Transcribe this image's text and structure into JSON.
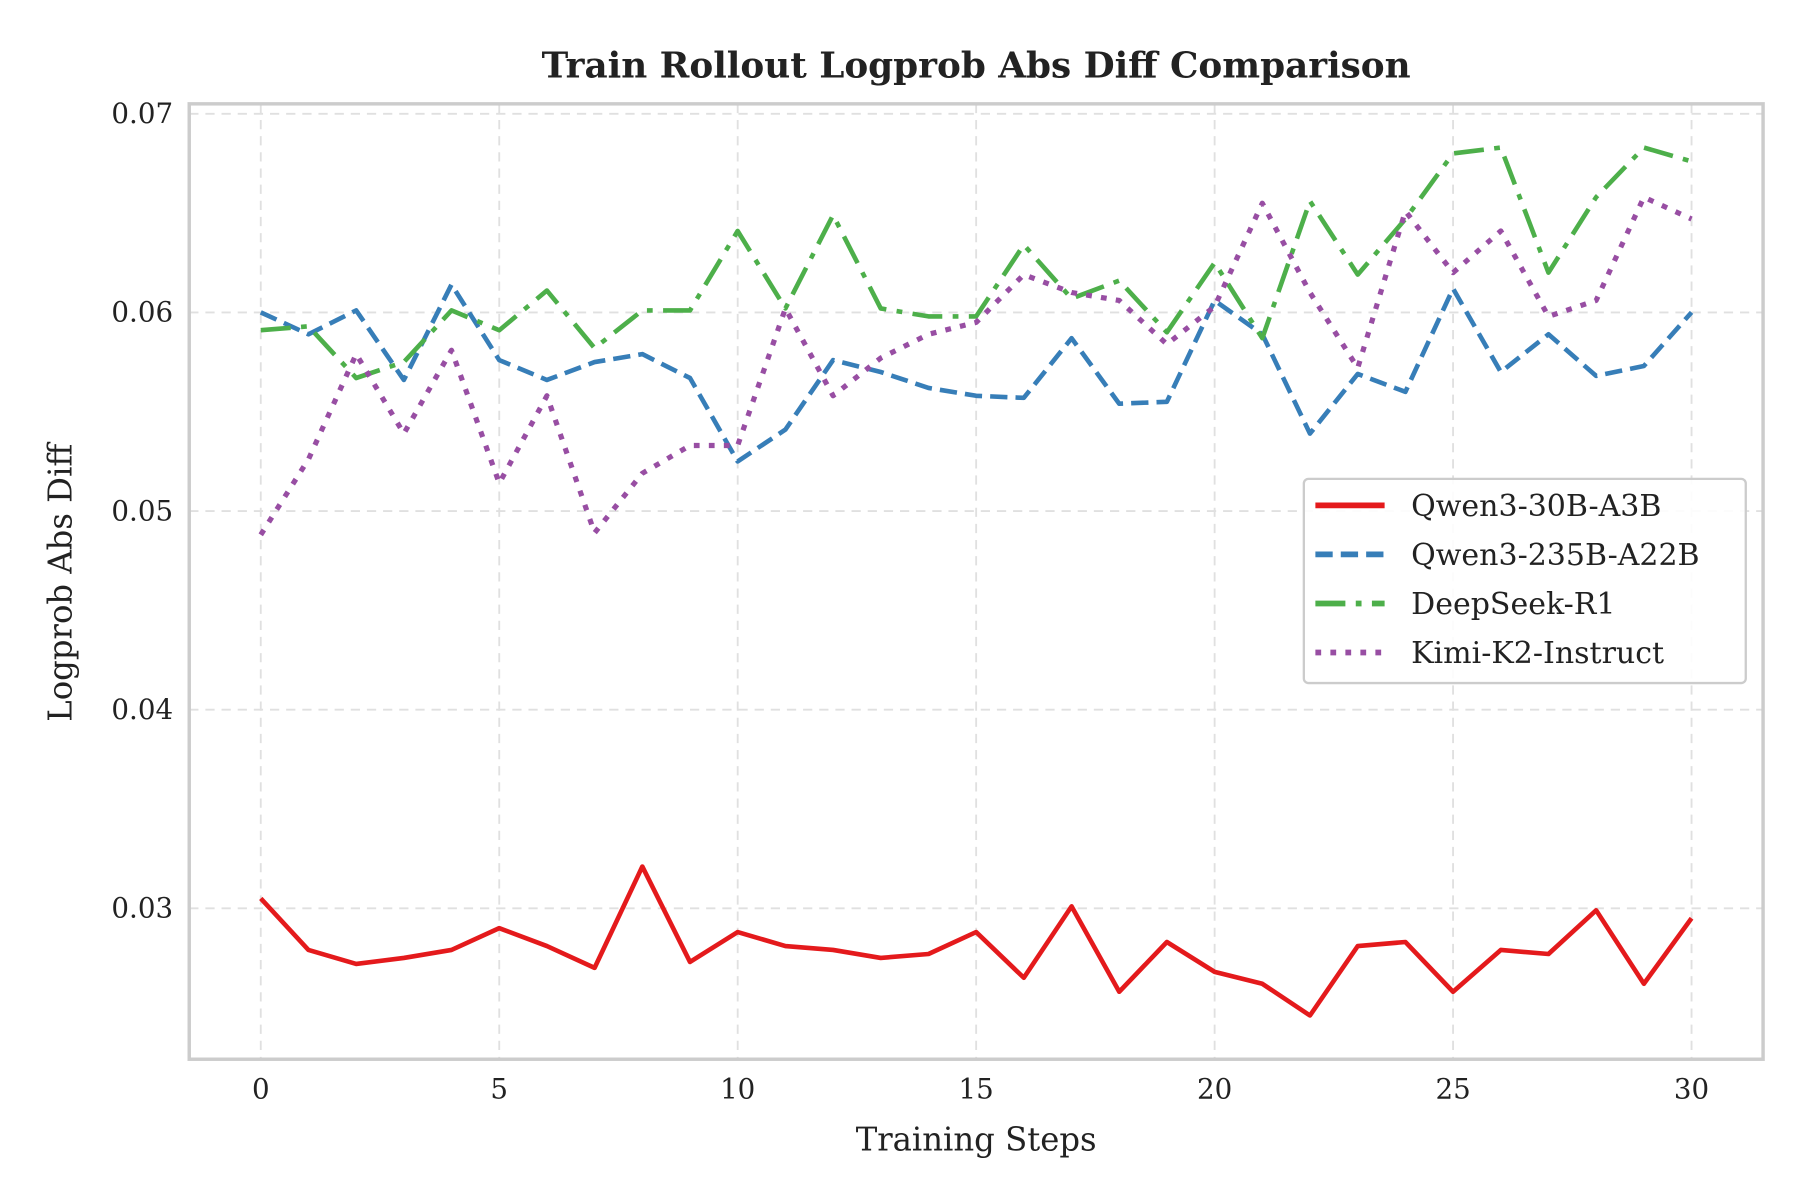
{
  "chart_data": {
    "type": "line",
    "title": "Train Rollout Logprob Abs Diff Comparison",
    "xlabel": "Training Steps",
    "ylabel": "Logprob Abs Diff",
    "xlim": [
      -1.5,
      31.5
    ],
    "ylim": [
      0.0224,
      0.0705
    ],
    "xticks": [
      0,
      5,
      10,
      15,
      20,
      25,
      30
    ],
    "xtick_labels": [
      "0",
      "5",
      "10",
      "15",
      "20",
      "25",
      "30"
    ],
    "yticks": [
      0.03,
      0.04,
      0.05,
      0.06,
      0.07
    ],
    "ytick_labels": [
      "0.03",
      "0.04",
      "0.05",
      "0.06",
      "0.07"
    ],
    "grid": true,
    "legend_position": "center-right",
    "x": [
      0,
      1,
      2,
      3,
      4,
      5,
      6,
      7,
      8,
      9,
      10,
      11,
      12,
      13,
      14,
      15,
      16,
      17,
      18,
      19,
      20,
      21,
      22,
      23,
      24,
      25,
      26,
      27,
      28,
      29,
      30
    ],
    "series": [
      {
        "name": "Qwen3-30B-A3B",
        "color": "#e41a1c",
        "style": "solid",
        "values": [
          0.0305,
          0.0279,
          0.0272,
          0.0275,
          0.0279,
          0.029,
          0.0281,
          0.027,
          0.0321,
          0.0273,
          0.0288,
          0.0281,
          0.0279,
          0.0275,
          0.0277,
          0.0288,
          0.0265,
          0.0301,
          0.0258,
          0.0283,
          0.0268,
          0.0262,
          0.0246,
          0.0281,
          0.0283,
          0.0258,
          0.0279,
          0.0277,
          0.0299,
          0.0262,
          0.0295
        ]
      },
      {
        "name": "Qwen3-235B-A22B",
        "color": "#377eb8",
        "style": "dashed",
        "values": [
          0.06,
          0.0589,
          0.0601,
          0.0566,
          0.0614,
          0.0576,
          0.0566,
          0.0575,
          0.0579,
          0.0567,
          0.0525,
          0.0541,
          0.0576,
          0.057,
          0.0562,
          0.0558,
          0.0557,
          0.0587,
          0.0554,
          0.0555,
          0.0606,
          0.0589,
          0.0539,
          0.0569,
          0.056,
          0.0612,
          0.057,
          0.0589,
          0.0568,
          0.0573,
          0.06
        ]
      },
      {
        "name": "DeepSeek-R1",
        "color": "#4daf4a",
        "style": "dashdot",
        "values": [
          0.0591,
          0.0593,
          0.0567,
          0.0575,
          0.0601,
          0.0591,
          0.0611,
          0.0582,
          0.0601,
          0.0601,
          0.0641,
          0.0602,
          0.0649,
          0.0602,
          0.0598,
          0.0598,
          0.0634,
          0.0607,
          0.0616,
          0.059,
          0.0625,
          0.0587,
          0.0656,
          0.0619,
          0.0647,
          0.068,
          0.0683,
          0.062,
          0.0658,
          0.0683,
          0.0676
        ]
      },
      {
        "name": "Kimi-K2-Instruct",
        "color": "#984ea3",
        "style": "dotted",
        "values": [
          0.0488,
          0.0526,
          0.0579,
          0.0539,
          0.0581,
          0.0514,
          0.0558,
          0.0489,
          0.0519,
          0.0533,
          0.0533,
          0.0602,
          0.0558,
          0.0577,
          0.0589,
          0.0595,
          0.0619,
          0.061,
          0.0606,
          0.0584,
          0.0603,
          0.0655,
          0.061,
          0.0572,
          0.0651,
          0.062,
          0.0641,
          0.0598,
          0.0606,
          0.0658,
          0.0647
        ]
      }
    ]
  }
}
